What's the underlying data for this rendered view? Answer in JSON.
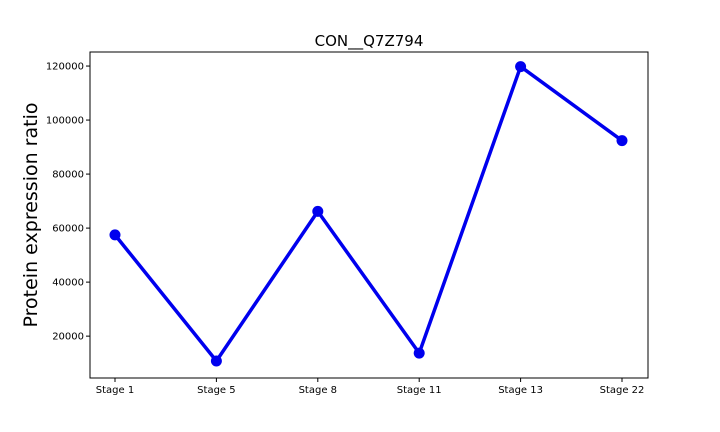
{
  "chart_data": {
    "type": "line",
    "title": "CON__Q7Z794",
    "xlabel": "",
    "ylabel": "Protein expression ratio",
    "categories": [
      "Stage 1",
      "Stage 5",
      "Stage 8",
      "Stage 11",
      "Stage 13",
      "Stage 22"
    ],
    "series": [
      {
        "values": [
          57500,
          10800,
          66200,
          13700,
          119800,
          92400
        ],
        "color": "#0000ee"
      }
    ],
    "ylim": [
      4500,
      125200
    ],
    "yticks": [
      20000,
      40000,
      60000,
      80000,
      100000,
      120000
    ],
    "ytick_labels": [
      "20000",
      "40000",
      "60000",
      "80000",
      "100000",
      "120000"
    ],
    "grid": false,
    "legend": "none"
  }
}
